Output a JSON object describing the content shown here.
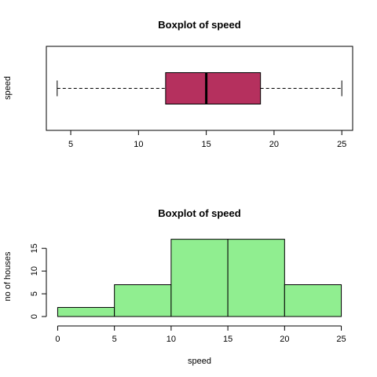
{
  "chart_data": [
    {
      "type": "boxplot",
      "title": "Boxplot of speed",
      "xlabel": "",
      "ylabel": "speed",
      "horizontal": true,
      "stats": {
        "whisker_low": 4,
        "q1": 12,
        "median": 15,
        "q3": 19,
        "whisker_high": 25
      },
      "xlim": [
        3.2,
        25.8
      ],
      "ticks": [
        5,
        10,
        15,
        20,
        25
      ],
      "box_color": "#b5305e"
    },
    {
      "type": "bar",
      "subtype": "histogram",
      "title": "Boxplot of speed",
      "xlabel": "speed",
      "ylabel": "no of houses",
      "bins": [
        [
          0,
          5
        ],
        [
          5,
          10
        ],
        [
          10,
          15
        ],
        [
          15,
          20
        ],
        [
          20,
          25
        ]
      ],
      "values": [
        2,
        7,
        17,
        17,
        7
      ],
      "xticks": [
        0,
        5,
        10,
        15,
        20,
        25
      ],
      "yticks": [
        0,
        5,
        10,
        15
      ],
      "xlim": [
        -1,
        26
      ],
      "ylim": [
        0,
        17.8
      ],
      "bar_color": "#90ee90"
    }
  ]
}
